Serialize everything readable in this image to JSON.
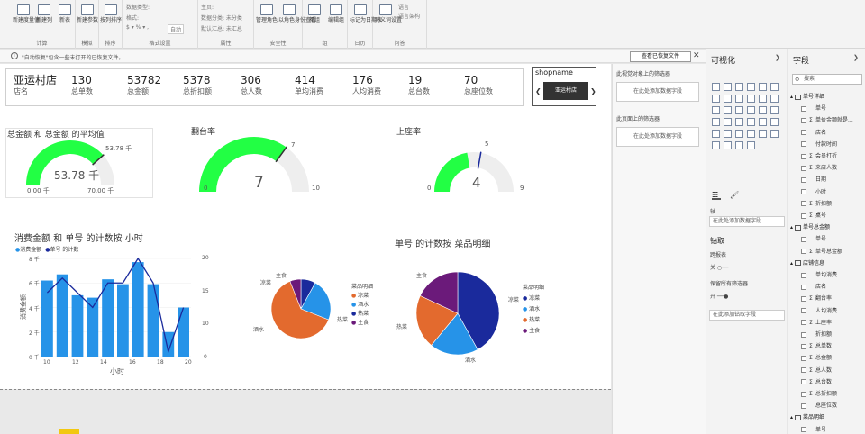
{
  "ribbon": {
    "groups": [
      {
        "name": "计算",
        "buttons": [
          "新建度量值",
          "新建列",
          "新表"
        ]
      },
      {
        "name": "模拟",
        "buttons": [
          "新建参数"
        ]
      },
      {
        "name": "排序",
        "buttons": [
          "按列排序"
        ]
      },
      {
        "name": "格式设置",
        "small": [
          "数据类型:",
          "格式:",
          "$ ▾ % ▾ ,",
          "自动"
        ]
      },
      {
        "name": "属性",
        "small": [
          "主页:",
          "数据分类: 未分类",
          "默认汇总: 未汇总"
        ]
      },
      {
        "name": "安全性",
        "buttons": [
          "管理角色",
          "以角色身份查看"
        ]
      },
      {
        "name": "组",
        "buttons": [
          "新组",
          "编辑组"
        ]
      },
      {
        "name": "日历",
        "buttons": [
          "标记为日期表"
        ]
      },
      {
        "name": "问答",
        "buttons": [
          "同义词设置"
        ],
        "small": [
          "语言",
          "语言架构"
        ]
      }
    ]
  },
  "infobar": {
    "message": "\"自动恢复\"包含一些未打开的已恢复文件。",
    "view_button": "查看已恢复文件"
  },
  "cards": [
    {
      "value": "亚运村店",
      "label": "店名"
    },
    {
      "value": "130",
      "label": "总单数"
    },
    {
      "value": "53782",
      "label": "总金额"
    },
    {
      "value": "5378",
      "label": "总折扣额"
    },
    {
      "value": "306",
      "label": "总人数"
    },
    {
      "value": "414",
      "label": "单均消费"
    },
    {
      "value": "176",
      "label": "人均消费"
    },
    {
      "value": "19",
      "label": "总台数"
    },
    {
      "value": "70",
      "label": "总座位数"
    }
  ],
  "slicer": {
    "title": "shopname",
    "selected": "亚运村店"
  },
  "gauges": [
    {
      "title": "总金额 和 总金额 的平均值",
      "value": 53.78,
      "min": 0,
      "max": 70,
      "target": 53.78,
      "value_label": "53.78 千",
      "min_label": "0.00 千",
      "max_label": "70.00 千",
      "target_label": "53.78 千",
      "color": "#22ff44"
    },
    {
      "title": "翻台率",
      "value": 7,
      "min": 0,
      "max": 10,
      "target": 7,
      "value_label": "7",
      "min_label": "0",
      "max_label": "10",
      "target_label": "7",
      "color": "#22ff44"
    },
    {
      "title": "上座率",
      "value": 4,
      "min": 0,
      "max": 9,
      "target": 5,
      "value_label": "4",
      "min_label": "0",
      "max_label": "9",
      "target_label": "5",
      "color": "#22ff44"
    }
  ],
  "combo": {
    "title": "消费金额 和 单号 的计数按 小时",
    "legend": [
      "消费金额",
      "单号 的计数"
    ],
    "xlabel": "小时",
    "ylabel": "消费金额",
    "left_ticks": [
      "0 千",
      "2 千",
      "4 千",
      "6 千",
      "8 千"
    ],
    "right_ticks": [
      "0",
      "5",
      "10",
      "15",
      "20"
    ],
    "x_ticks": [
      "10",
      "12",
      "14",
      "16",
      "18",
      "20"
    ]
  },
  "pie1": {
    "legend_title": "菜品明细",
    "legend": [
      "凉菜",
      "酒水",
      "热菜",
      "主食"
    ],
    "labels": [
      "主食",
      "凉菜",
      "酒水",
      "热菜"
    ]
  },
  "pie2": {
    "title": "单号 的计数按 菜品明细",
    "legend_title": "菜品明细",
    "legend": [
      "凉菜",
      "酒水",
      "热菜",
      "主食"
    ],
    "labels": [
      "主食",
      "凉菜",
      "热菜",
      "酒水"
    ]
  },
  "chart_data": [
    {
      "type": "gauge",
      "title": "总金额 和 总金额 的平均值",
      "value": 53.78,
      "min": 0,
      "max": 70,
      "target": 53.78,
      "unit": "千"
    },
    {
      "type": "gauge",
      "title": "翻台率",
      "value": 7,
      "min": 0,
      "max": 10,
      "target": 7
    },
    {
      "type": "gauge",
      "title": "上座率",
      "value": 4,
      "min": 0,
      "max": 9,
      "target": 5
    },
    {
      "type": "bar",
      "title": "消费金额 和 单号 的计数按 小时",
      "xlabel": "小时",
      "ylabel": "消费金额",
      "x": [
        10,
        11,
        12,
        13,
        14,
        15,
        16,
        17,
        18,
        19
      ],
      "series": [
        {
          "name": "消费金额",
          "type": "bar",
          "values": [
            6.2,
            6.7,
            5.0,
            4.8,
            6.3,
            5.9,
            7.7,
            5.9,
            2.0,
            4.0
          ],
          "unit": "千",
          "axis": "left",
          "ylim": [
            0,
            8
          ]
        },
        {
          "name": "单号 的计数",
          "type": "line",
          "values": [
            13,
            16,
            13,
            10,
            15,
            15,
            20,
            15,
            1,
            10
          ],
          "axis": "right",
          "ylim": [
            0,
            20
          ]
        }
      ],
      "legend_placement": "top-left"
    },
    {
      "type": "pie",
      "categories": [
        "凉菜",
        "酒水",
        "热菜",
        "主食"
      ],
      "values": [
        8,
        23,
        63,
        6
      ],
      "colors": [
        "#1a2a9c",
        "#2693e8",
        "#e36a2e",
        "#6b1a7a"
      ]
    },
    {
      "type": "pie",
      "title": "单号 的计数按 菜品明细",
      "categories": [
        "凉菜",
        "酒水",
        "热菜",
        "主食"
      ],
      "values": [
        42,
        19,
        21,
        18
      ],
      "colors": [
        "#1a2a9c",
        "#2693e8",
        "#e36a2e",
        "#6b1a7a"
      ]
    }
  ],
  "filters_pane": {
    "visual_level": "此视觉对象上的筛选器",
    "visual_well": "在此处添加数据字段",
    "page_level": "此页面上的筛选器",
    "page_well": "在此处添加数据字段"
  },
  "viz_pane": {
    "title": "可视化",
    "axis_label": "轴",
    "axis_well": "在此处添加数据字段",
    "drill_title": "钻取",
    "cross_report": "跨报表",
    "off_label": "关",
    "keep_filters": "保留所有筛选器",
    "on_label": "开",
    "drill_well": "在此添加钻取字段"
  },
  "fields_pane": {
    "title": "字段",
    "search_placeholder": "搜索",
    "rows": [
      {
        "kind": "table",
        "text": "单号详细"
      },
      {
        "kind": "field",
        "sigma": "",
        "text": "单号"
      },
      {
        "kind": "field",
        "sigma": "Σ",
        "text": "单价金额就是..."
      },
      {
        "kind": "field",
        "sigma": "",
        "text": "店名"
      },
      {
        "kind": "field",
        "sigma": "",
        "text": "付款时间"
      },
      {
        "kind": "field",
        "sigma": "Σ",
        "text": "会员打折"
      },
      {
        "kind": "field",
        "sigma": "Σ",
        "text": "来店人数"
      },
      {
        "kind": "field",
        "sigma": "",
        "text": "日期"
      },
      {
        "kind": "field",
        "sigma": "",
        "text": "小时"
      },
      {
        "kind": "field",
        "sigma": "Σ",
        "text": "折扣额"
      },
      {
        "kind": "field",
        "sigma": "Σ",
        "text": "桌号"
      },
      {
        "kind": "table",
        "text": "单号总金额"
      },
      {
        "kind": "field",
        "sigma": "",
        "text": "单号"
      },
      {
        "kind": "field",
        "sigma": "Σ",
        "text": "单号总金额"
      },
      {
        "kind": "table",
        "text": "店铺信息"
      },
      {
        "kind": "field",
        "sigma": "",
        "text": "单均消费"
      },
      {
        "kind": "field",
        "sigma": "",
        "text": "店名"
      },
      {
        "kind": "field",
        "sigma": "Σ",
        "text": "翻台率"
      },
      {
        "kind": "field",
        "sigma": "",
        "text": "人均消费"
      },
      {
        "kind": "field",
        "sigma": "Σ",
        "text": "上座率"
      },
      {
        "kind": "field",
        "sigma": "",
        "text": "折扣额"
      },
      {
        "kind": "field",
        "sigma": "Σ",
        "text": "总单数"
      },
      {
        "kind": "field",
        "sigma": "Σ",
        "text": "总金额"
      },
      {
        "kind": "field",
        "sigma": "Σ",
        "text": "总人数"
      },
      {
        "kind": "field",
        "sigma": "Σ",
        "text": "总台数"
      },
      {
        "kind": "field",
        "sigma": "Σ",
        "text": "总折扣额"
      },
      {
        "kind": "field",
        "sigma": "",
        "text": "总座位数"
      },
      {
        "kind": "table",
        "text": "菜品明细"
      },
      {
        "kind": "field",
        "sigma": "",
        "text": "单号"
      }
    ]
  }
}
